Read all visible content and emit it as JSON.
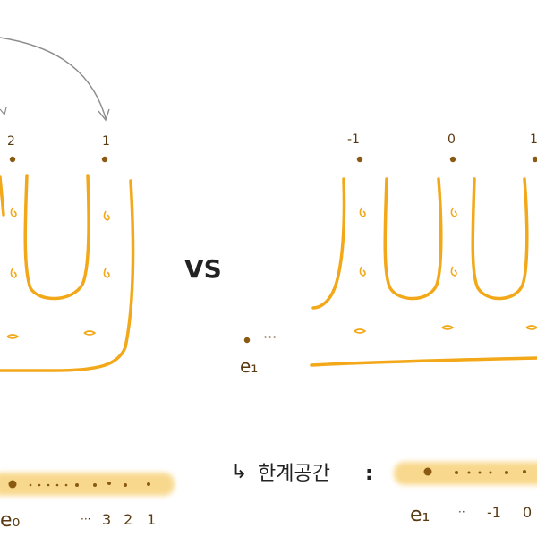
{
  "comparison_label": "VS",
  "left_diagram": {
    "point_labels": [
      "2",
      "1"
    ],
    "basepoint_label": "e₀",
    "strip_labels": [
      "e₀",
      "···",
      "3",
      "2",
      "1"
    ]
  },
  "right_diagram": {
    "point_labels": [
      "-1",
      "0",
      "1"
    ],
    "basepoint_label": "e₁",
    "dots_label": "···",
    "strip_arrow": "↳",
    "limit_space_label": "한계공간",
    "colon": ":",
    "strip_labels": [
      "e₁",
      "··",
      "-1",
      "0"
    ]
  },
  "colors": {
    "curve": "#f2a818",
    "point": "#8a5a12",
    "arrow": "#8c8c8c",
    "strip": "#f7d27a"
  }
}
